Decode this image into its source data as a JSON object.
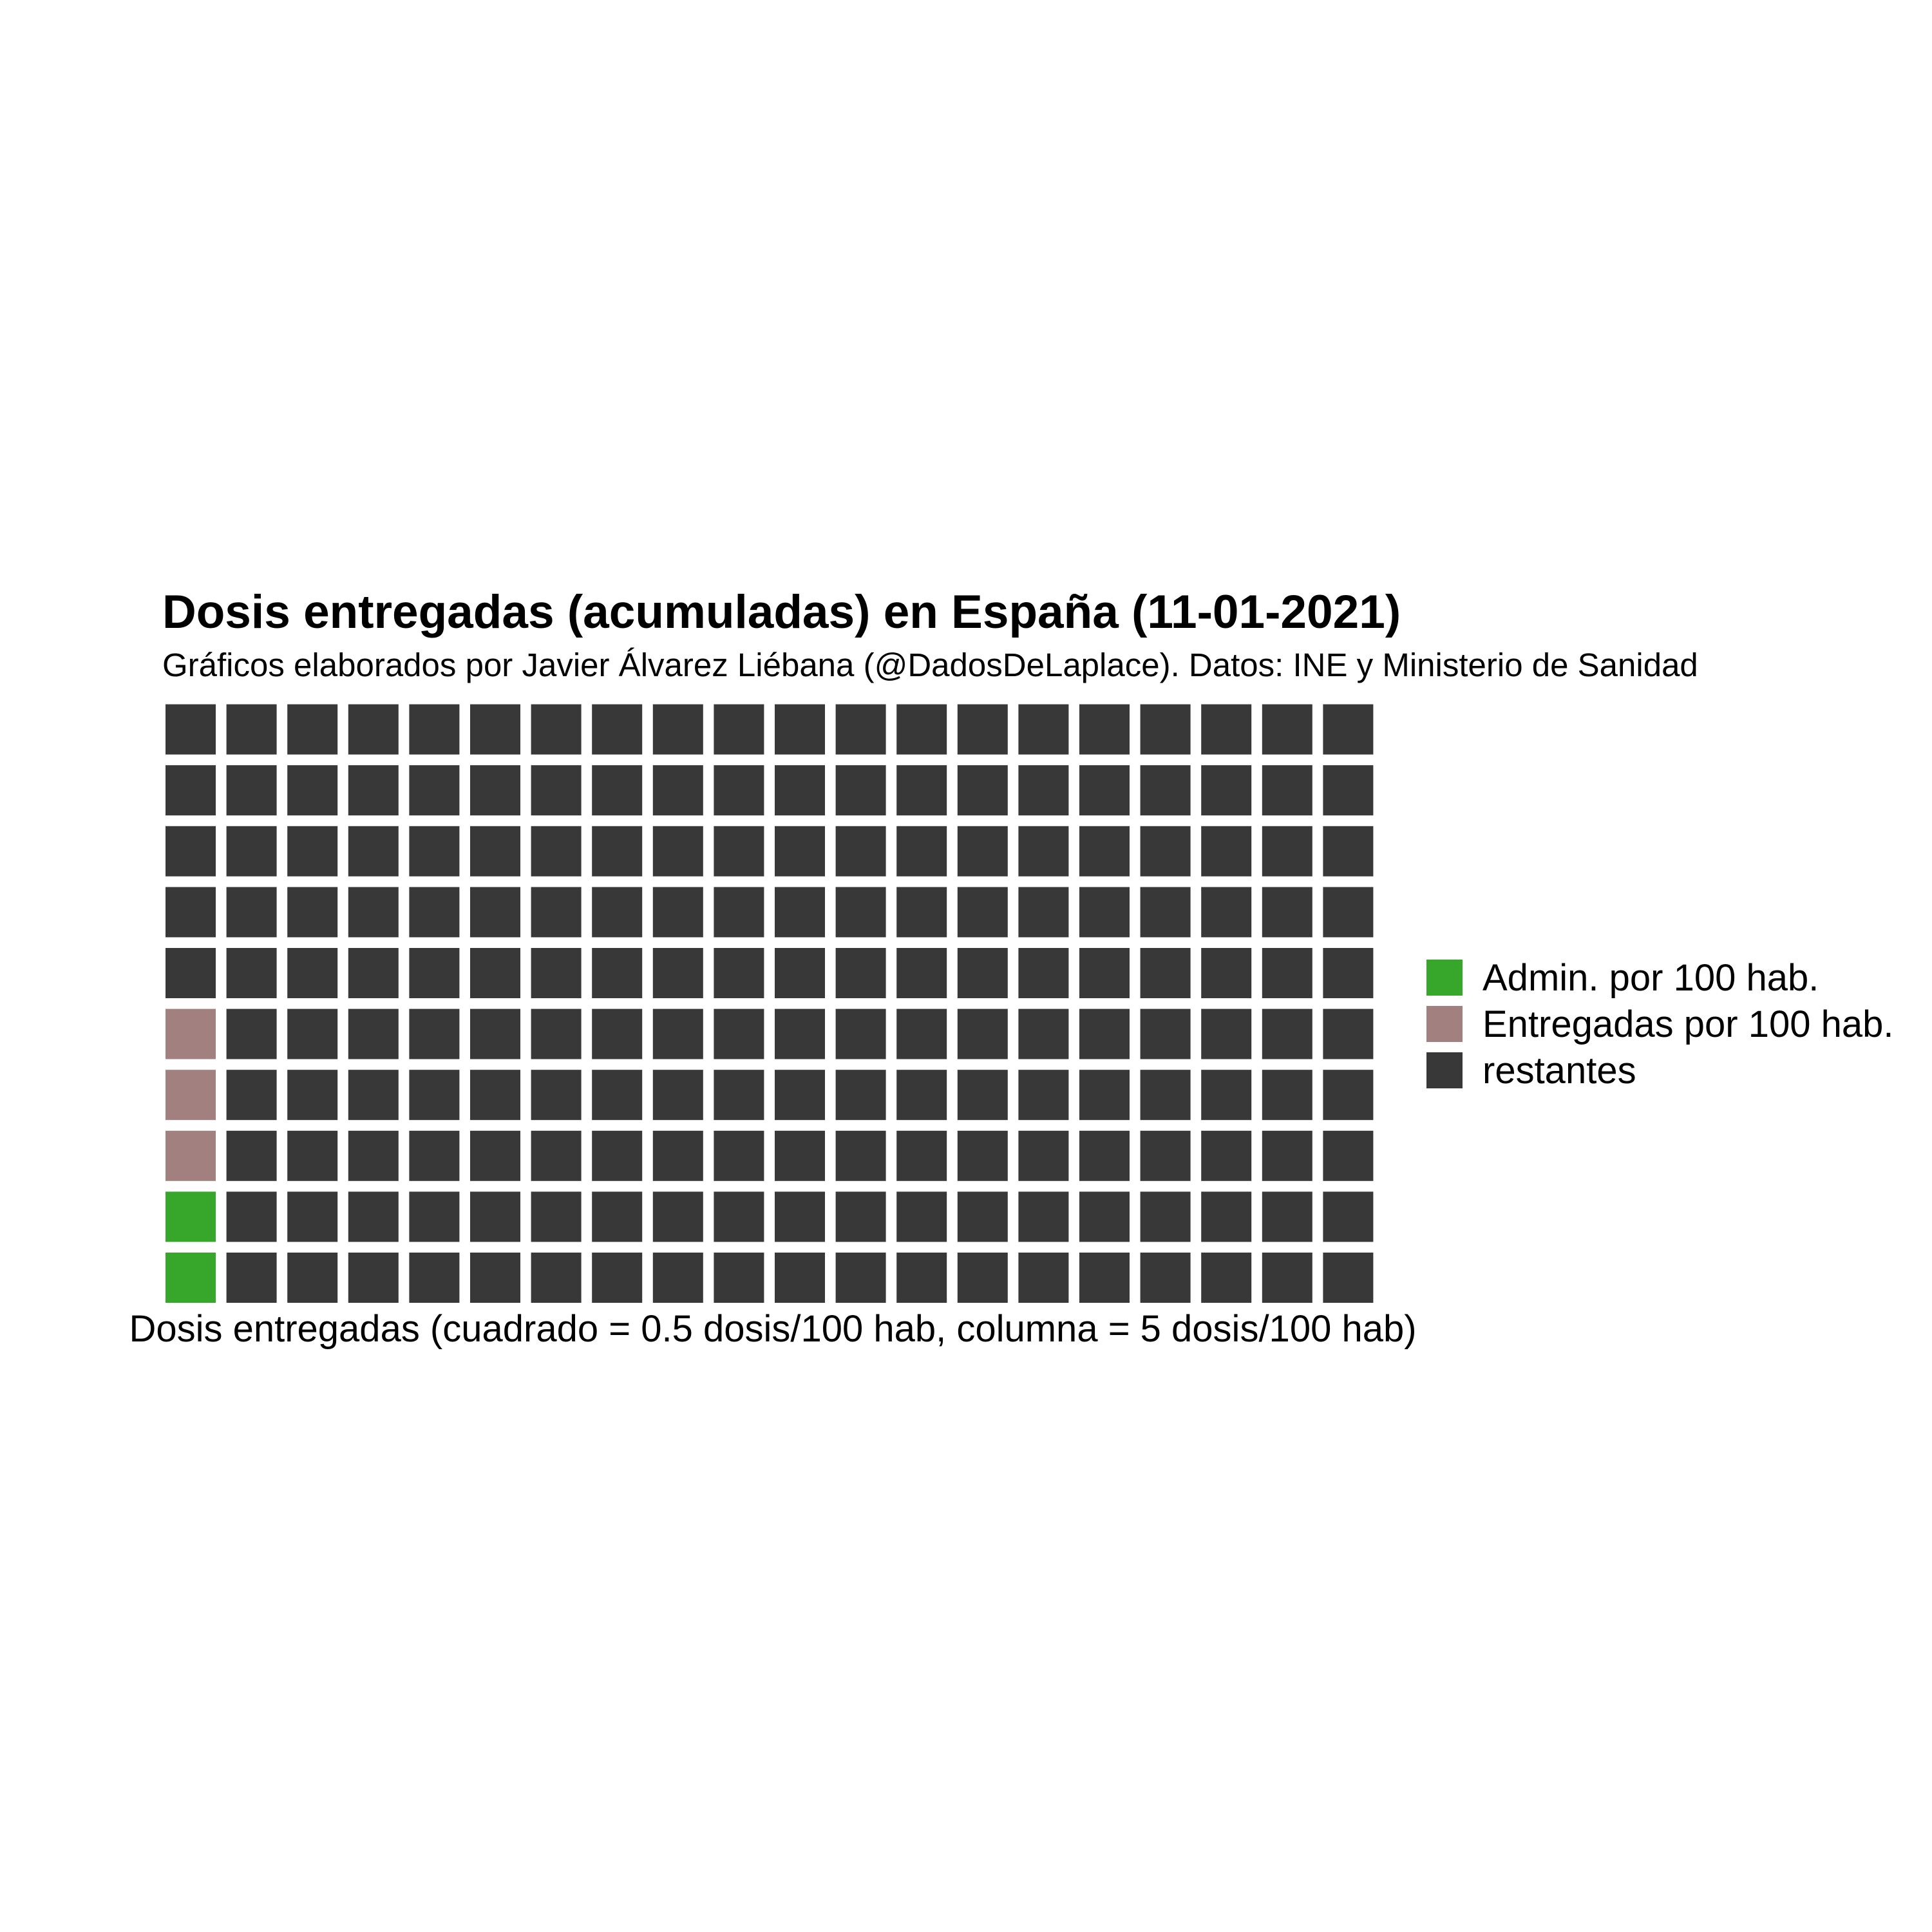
{
  "chart_data": {
    "type": "waffle",
    "title": "Dosis entregadas (acumuladas) en España (11-01-2021)",
    "subtitle": "Gráficos elaborados por Javier Álvarez Liébana (@DadosDeLaplace). Datos: INE y Ministerio de Sanidad",
    "xlabel": "Dosis entregadas (cuadrado = 0.5 dosis/100 hab, columna = 5 dosis/100 hab)",
    "rows": 10,
    "columns": 20,
    "fill_order": "column-wise, bottom to top, left to right",
    "legend_position": "right",
    "series": [
      {
        "name": "Admin. por 100 hab.",
        "squares": 2,
        "color": "#36a72a"
      },
      {
        "name": "Entregadas por 100 hab.",
        "squares": 3,
        "color": "#a38080"
      },
      {
        "name": "restantes",
        "squares": 195,
        "color": "#383838"
      }
    ]
  }
}
